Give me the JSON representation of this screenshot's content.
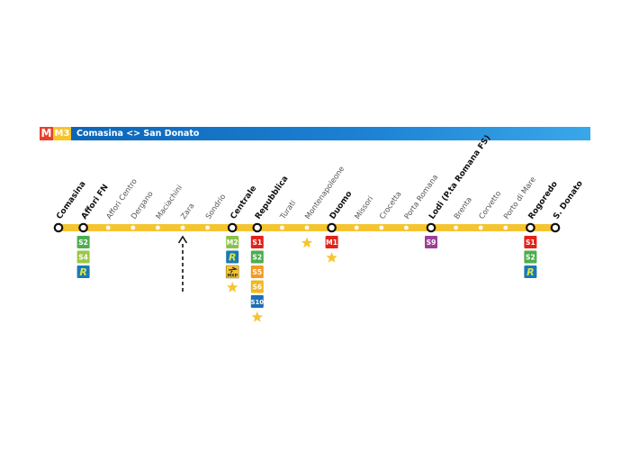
{
  "header": {
    "logo_letter": "M",
    "line_code": "M3",
    "route": "Comasina <> San Donato",
    "colors": {
      "bar": "#0a63b5",
      "logo": "#e8402c",
      "line": "#f7c52a"
    }
  },
  "line_color": "#f5c531",
  "stations": [
    {
      "name": "Comasina",
      "terminal": true,
      "interchange": false,
      "badges": []
    },
    {
      "name": "Affori FN",
      "terminal": false,
      "interchange": true,
      "badges": [
        "S2",
        "S4",
        "R"
      ]
    },
    {
      "name": "Affori Centro",
      "terminal": false,
      "interchange": false,
      "badges": []
    },
    {
      "name": "Dergano",
      "terminal": false,
      "interchange": false,
      "badges": []
    },
    {
      "name": "Maciachini",
      "terminal": false,
      "interchange": false,
      "badges": []
    },
    {
      "name": "Zara",
      "terminal": false,
      "interchange": false,
      "badges": []
    },
    {
      "name": "Sondrio",
      "terminal": false,
      "interchange": false,
      "badges": []
    },
    {
      "name": "Centrale",
      "terminal": false,
      "interchange": true,
      "badges": [
        "M2",
        "R",
        "MXP",
        "star"
      ]
    },
    {
      "name": "Repubblica",
      "terminal": false,
      "interchange": true,
      "badges": [
        "S1",
        "S2",
        "S5",
        "S6",
        "S10",
        "star"
      ]
    },
    {
      "name": "Turati",
      "terminal": false,
      "interchange": false,
      "badges": []
    },
    {
      "name": "Montenapoleone",
      "terminal": false,
      "interchange": false,
      "badges": [
        "star"
      ]
    },
    {
      "name": "Duomo",
      "terminal": false,
      "interchange": true,
      "badges": [
        "M1",
        "star"
      ]
    },
    {
      "name": "Missori",
      "terminal": false,
      "interchange": false,
      "badges": []
    },
    {
      "name": "Crocetta",
      "terminal": false,
      "interchange": false,
      "badges": []
    },
    {
      "name": "Porta Romana",
      "terminal": false,
      "interchange": false,
      "badges": []
    },
    {
      "name": "Lodi (P.ta Romana FS)",
      "terminal": false,
      "interchange": true,
      "badges": [
        "S9"
      ]
    },
    {
      "name": "Brenta",
      "terminal": false,
      "interchange": false,
      "badges": []
    },
    {
      "name": "Corvetto",
      "terminal": false,
      "interchange": false,
      "badges": []
    },
    {
      "name": "Porto di Mare",
      "terminal": false,
      "interchange": false,
      "badges": []
    },
    {
      "name": "Rogoredo",
      "terminal": false,
      "interchange": true,
      "badges": [
        "S1",
        "S2",
        "R"
      ]
    },
    {
      "name": "S. Donato",
      "terminal": true,
      "interchange": false,
      "badges": []
    }
  ],
  "badge_colors": {
    "S1": "#e2231a",
    "S2": "#4cae4f",
    "S4": "#9bc845",
    "S5": "#f39a26",
    "S6": "#f2b61d",
    "S9": "#9b3f98",
    "S10": "#1d6fb8",
    "M1": "#e2231a",
    "M2": "#8bc34a",
    "R": "#1b79b4",
    "MXP": "#f6c431"
  },
  "marker": {
    "station": "Zara",
    "style": "dashed-arrow"
  }
}
